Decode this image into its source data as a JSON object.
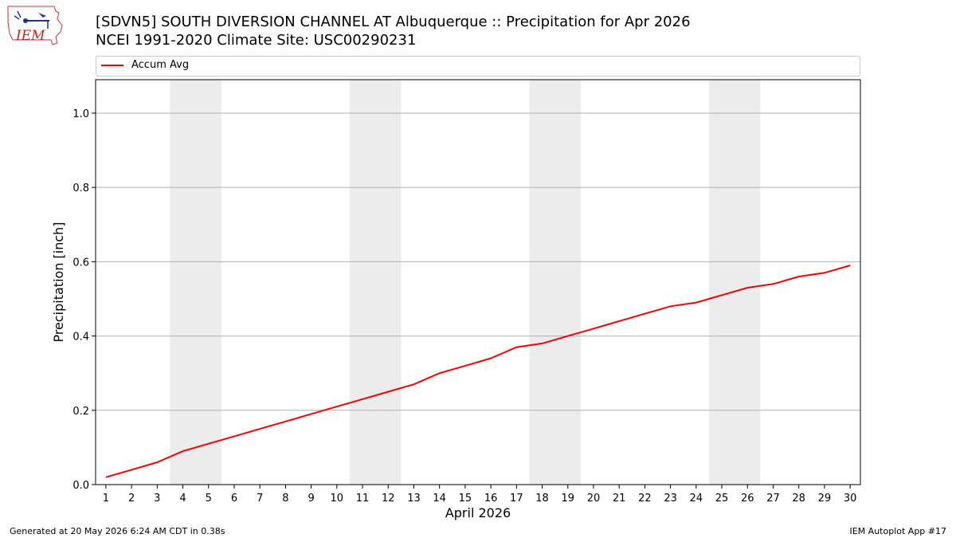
{
  "header": {
    "title_line1": "[SDVN5] SOUTH DIVERSION CHANNEL  AT Albuquerque :: Precipitation for Apr 2026",
    "title_line2": "NCEI 1991-2020 Climate Site: USC00290231",
    "logo_text": "IEM"
  },
  "legend": {
    "label": "Accum Avg"
  },
  "footer": {
    "left": "Generated at 20 May 2026 6:24 AM CDT in 0.38s",
    "right": "IEM Autoplot App #17"
  },
  "chart_data": {
    "type": "line",
    "title": "[SDVN5] SOUTH DIVERSION CHANNEL  AT Albuquerque :: Precipitation for Apr 2026",
    "subtitle": "NCEI 1991-2020 Climate Site: USC00290231",
    "xlabel": "April 2026",
    "ylabel": "Precipitation [inch]",
    "x": [
      1,
      2,
      3,
      4,
      5,
      6,
      7,
      8,
      9,
      10,
      11,
      12,
      13,
      14,
      15,
      16,
      17,
      18,
      19,
      20,
      21,
      22,
      23,
      24,
      25,
      26,
      27,
      28,
      29,
      30
    ],
    "series": [
      {
        "name": "Accum Avg",
        "color": "#ff0000",
        "values": [
          0.02,
          0.04,
          0.06,
          0.09,
          0.11,
          0.13,
          0.15,
          0.17,
          0.19,
          0.21,
          0.23,
          0.25,
          0.27,
          0.3,
          0.32,
          0.34,
          0.37,
          0.38,
          0.4,
          0.42,
          0.44,
          0.46,
          0.48,
          0.49,
          0.51,
          0.53,
          0.54,
          0.56,
          0.57,
          0.59
        ]
      }
    ],
    "xlim": [
      0.6,
      30.4
    ],
    "ylim": [
      0,
      1.09
    ],
    "yticks": [
      0.0,
      0.2,
      0.4,
      0.6,
      0.8,
      1.0
    ],
    "ytick_labels": [
      "0.0",
      "0.2",
      "0.4",
      "0.6",
      "0.8",
      "1.0"
    ],
    "weekend_bands": [
      [
        3.5,
        5.5
      ],
      [
        10.5,
        12.5
      ],
      [
        17.5,
        19.5
      ],
      [
        24.5,
        26.5
      ]
    ],
    "band_color": "#ececec",
    "grid": "horizontal",
    "legend_position": "top"
  }
}
